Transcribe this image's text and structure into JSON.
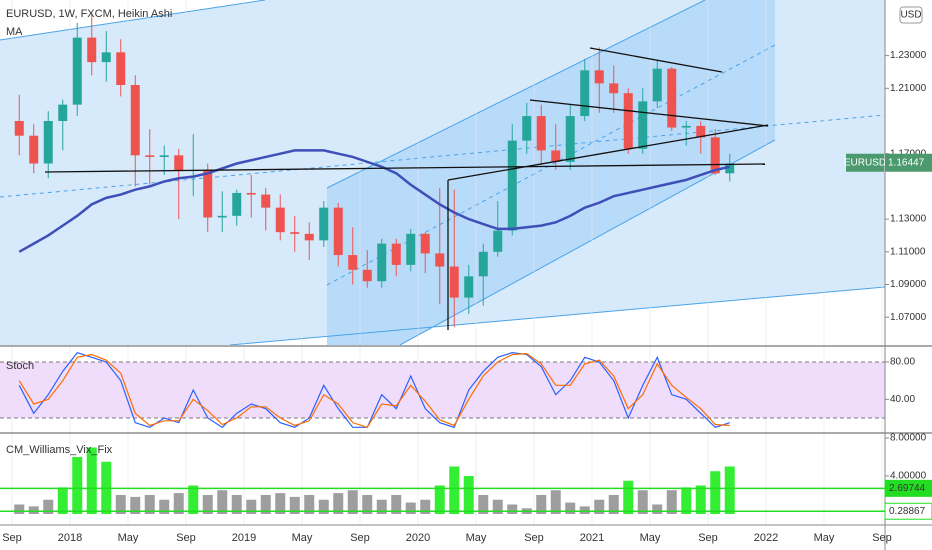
{
  "chart_data": [
    {
      "type": "candlestick",
      "title": "EURUSD, 1W, FXCM, Heikin Ashi",
      "currency": "USD",
      "open": [
        1.19,
        1.181,
        1.164,
        1.19,
        1.2,
        1.241,
        1.226,
        1.232,
        1.212,
        1.169,
        1.168,
        1.169,
        1.16,
        1.16,
        1.131,
        1.132,
        1.146,
        1.145,
        1.137,
        1.122,
        1.121,
        1.117,
        1.137,
        1.108,
        1.099,
        1.092,
        1.115,
        1.102,
        1.121,
        1.109,
        1.101,
        1.082,
        1.095,
        1.11,
        1.123,
        1.178,
        1.193,
        1.172,
        1.165,
        1.193,
        1.221,
        1.213,
        1.207,
        1.173,
        1.202,
        1.222,
        1.186,
        1.187,
        1.18,
        1.158
      ],
      "high": [
        1.206,
        1.188,
        1.196,
        1.203,
        1.25,
        1.256,
        1.245,
        1.24,
        1.218,
        1.185,
        1.175,
        1.173,
        1.182,
        1.164,
        1.147,
        1.148,
        1.157,
        1.149,
        1.145,
        1.132,
        1.128,
        1.141,
        1.14,
        1.125,
        1.111,
        1.118,
        1.118,
        1.124,
        1.122,
        1.149,
        1.148,
        1.102,
        1.115,
        1.141,
        1.188,
        1.201,
        1.2,
        1.188,
        1.2,
        1.228,
        1.235,
        1.224,
        1.21,
        1.21,
        1.227,
        1.223,
        1.19,
        1.19,
        1.185,
        1.17
      ],
      "low": [
        1.169,
        1.158,
        1.155,
        1.172,
        1.193,
        1.218,
        1.214,
        1.205,
        1.15,
        1.151,
        1.157,
        1.13,
        1.144,
        1.122,
        1.122,
        1.126,
        1.131,
        1.123,
        1.117,
        1.11,
        1.105,
        1.113,
        1.101,
        1.09,
        1.088,
        1.088,
        1.095,
        1.098,
        1.097,
        1.078,
        1.064,
        1.072,
        1.077,
        1.107,
        1.12,
        1.17,
        1.163,
        1.16,
        1.16,
        1.19,
        1.195,
        1.195,
        1.17,
        1.17,
        1.198,
        1.184,
        1.175,
        1.17,
        1.157,
        1.153
      ],
      "close": [
        1.181,
        1.164,
        1.19,
        1.2,
        1.241,
        1.226,
        1.232,
        1.212,
        1.169,
        1.168,
        1.169,
        1.16,
        1.16,
        1.131,
        1.132,
        1.146,
        1.145,
        1.137,
        1.122,
        1.121,
        1.117,
        1.137,
        1.108,
        1.099,
        1.092,
        1.115,
        1.102,
        1.121,
        1.109,
        1.101,
        1.082,
        1.095,
        1.11,
        1.123,
        1.178,
        1.193,
        1.172,
        1.165,
        1.193,
        1.221,
        1.213,
        1.207,
        1.173,
        1.202,
        1.222,
        1.186,
        1.187,
        1.18,
        1.158,
        1.164
      ],
      "up_color": "#26a69a",
      "down_color": "#ef5350",
      "series": [
        {
          "name": "MA",
          "color": "#3f4fb8",
          "values": [
            1.11,
            1.115,
            1.12,
            1.126,
            1.132,
            1.139,
            1.143,
            1.145,
            1.148,
            1.15,
            1.153,
            1.155,
            1.156,
            1.158,
            1.161,
            1.164,
            1.166,
            1.168,
            1.17,
            1.172,
            1.172,
            1.172,
            1.17,
            1.168,
            1.165,
            1.162,
            1.158,
            1.151,
            1.145,
            1.139,
            1.134,
            1.13,
            1.127,
            1.124,
            1.124,
            1.125,
            1.126,
            1.128,
            1.132,
            1.137,
            1.14,
            1.144,
            1.146,
            1.148,
            1.15,
            1.152,
            1.154,
            1.157,
            1.16,
            1.162
          ]
        }
      ],
      "ylim": [
        1.053,
        1.264
      ],
      "yticks": [
        {
          "value": 1.07,
          "label": "1.07000"
        },
        {
          "value": 1.09,
          "label": "1.09000"
        },
        {
          "value": 1.11,
          "label": "1.11000"
        },
        {
          "value": 1.13,
          "label": "1.13000"
        },
        {
          "value": 1.17,
          "label": "1.17000"
        },
        {
          "value": 1.21,
          "label": "1.21000"
        },
        {
          "value": 1.23,
          "label": "1.23000"
        }
      ],
      "last_price": {
        "symbol": "EURUSD",
        "value": 1.16447,
        "color": "#4a9a6e"
      }
    },
    {
      "type": "line",
      "title": "Stoch",
      "series": [
        {
          "color": "#2962ff",
          "values": [
            55,
            25,
            45,
            70,
            90,
            85,
            80,
            60,
            15,
            10,
            20,
            15,
            50,
            20,
            10,
            25,
            35,
            30,
            15,
            10,
            20,
            55,
            30,
            10,
            10,
            45,
            30,
            65,
            30,
            15,
            10,
            50,
            70,
            85,
            90,
            88,
            75,
            45,
            60,
            85,
            80,
            60,
            20,
            55,
            85,
            45,
            40,
            25,
            10,
            15
          ]
        },
        {
          "color": "#ff6d00",
          "values": [
            60,
            35,
            40,
            60,
            85,
            88,
            82,
            68,
            25,
            12,
            17,
            17,
            40,
            28,
            13,
            20,
            32,
            32,
            20,
            12,
            17,
            45,
            35,
            15,
            10,
            35,
            33,
            55,
            38,
            18,
            12,
            40,
            65,
            80,
            88,
            89,
            78,
            55,
            55,
            78,
            82,
            65,
            30,
            45,
            78,
            55,
            42,
            30,
            13,
            12
          ]
        }
      ],
      "bands": [
        20,
        80
      ],
      "band_color": "#f0dcfb",
      "ylim": [
        5,
        95
      ],
      "yticks": [
        {
          "value": 40,
          "label": "40.00"
        },
        {
          "value": 80,
          "label": "80.00"
        }
      ]
    },
    {
      "type": "bar",
      "title": "CM_Williams_Vix_Fix",
      "values": [
        1.0,
        0.8,
        1.5,
        2.8,
        6.0,
        7.0,
        5.5,
        2.0,
        1.8,
        2.0,
        1.5,
        2.2,
        3.0,
        2.0,
        2.5,
        2.0,
        1.5,
        2.0,
        2.2,
        1.8,
        2.0,
        1.5,
        2.2,
        2.5,
        2.0,
        1.5,
        2.0,
        1.2,
        1.5,
        3.0,
        5.0,
        4.0,
        2.0,
        1.5,
        1.0,
        0.6,
        2.0,
        2.5,
        1.2,
        0.8,
        1.5,
        2.0,
        3.5,
        2.5,
        1.0,
        2.5,
        2.8,
        3.0,
        4.5,
        5.0
      ],
      "color": "#9e9e9e",
      "highlight_color": "#33ee33",
      "levels": [
        2.69744,
        0.28867
      ],
      "level_color": "#22dd22",
      "ylim": [
        -1.16,
        8.42
      ],
      "yticks": [
        {
          "value": 8,
          "label": "8.00000"
        },
        {
          "value": 4,
          "label": "4.00000"
        }
      ]
    }
  ],
  "time_axis": {
    "categories": [
      "Sep",
      null,
      null,
      null,
      "2018",
      null,
      null,
      null,
      "May",
      null,
      null,
      null,
      "Sep",
      null,
      null,
      null,
      "2019",
      null,
      null,
      null,
      "May",
      null,
      null,
      null,
      "Sep",
      null,
      null,
      null,
      "2020",
      null,
      null,
      null,
      "May",
      null,
      null,
      null,
      "Sep",
      null,
      null,
      null,
      "2021",
      null,
      null,
      null,
      "May",
      null,
      null,
      null,
      "Sep",
      null,
      null,
      null,
      "2022",
      null,
      null,
      null,
      "May",
      null,
      null,
      null,
      "Sep"
    ]
  }
}
